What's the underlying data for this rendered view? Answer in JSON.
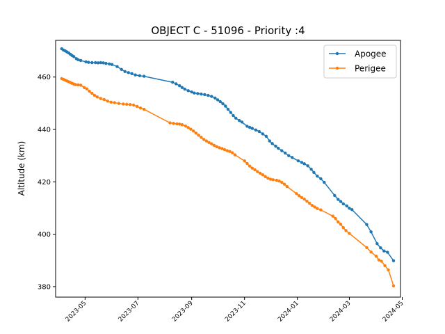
{
  "chart_data": {
    "type": "line",
    "title": "OBJECT C - 51096 - Priority :4",
    "xlabel": "",
    "ylabel": "Altitude (km)",
    "x_axis_type": "date",
    "xlim": [
      "2023-03-28",
      "2024-04-29"
    ],
    "ylim": [
      376,
      474
    ],
    "xticks": [
      "2023-05",
      "2023-07",
      "2023-09",
      "2023-11",
      "2024-01",
      "2024-03",
      "2024-05"
    ],
    "yticks": [
      380,
      400,
      420,
      440,
      460
    ],
    "grid": false,
    "legend_position": "top-right",
    "series": [
      {
        "name": "Apogee",
        "color": "#1f77b4",
        "marker": "circle",
        "points": [
          [
            "2023-04-04",
            470.8
          ],
          [
            "2023-04-06",
            470.3
          ],
          [
            "2023-04-08",
            470.0
          ],
          [
            "2023-04-10",
            469.6
          ],
          [
            "2023-04-12",
            469.2
          ],
          [
            "2023-04-14",
            468.7
          ],
          [
            "2023-04-16",
            468.2
          ],
          [
            "2023-04-18",
            467.8
          ],
          [
            "2023-04-21",
            467.0
          ],
          [
            "2023-04-23",
            466.6
          ],
          [
            "2023-04-26",
            466.3
          ],
          [
            "2023-05-02",
            465.8
          ],
          [
            "2023-05-05",
            465.6
          ],
          [
            "2023-05-09",
            465.5
          ],
          [
            "2023-05-13",
            465.5
          ],
          [
            "2023-05-16",
            465.4
          ],
          [
            "2023-05-19",
            465.5
          ],
          [
            "2023-05-22",
            465.4
          ],
          [
            "2023-05-25",
            465.2
          ],
          [
            "2023-05-29",
            465.0
          ],
          [
            "2023-06-01",
            464.8
          ],
          [
            "2023-06-07",
            464.0
          ],
          [
            "2023-06-12",
            462.9
          ],
          [
            "2023-06-16",
            462.1
          ],
          [
            "2023-06-20",
            461.7
          ],
          [
            "2023-06-24",
            461.3
          ],
          [
            "2023-06-28",
            460.8
          ],
          [
            "2023-07-03",
            460.5
          ],
          [
            "2023-07-08",
            460.3
          ],
          [
            "2023-08-10",
            458.0
          ],
          [
            "2023-08-14",
            457.4
          ],
          [
            "2023-08-18",
            456.7
          ],
          [
            "2023-08-21",
            456.0
          ],
          [
            "2023-08-24",
            455.4
          ],
          [
            "2023-08-28",
            454.8
          ],
          [
            "2023-09-01",
            454.3
          ],
          [
            "2023-09-04",
            453.9
          ],
          [
            "2023-09-08",
            453.7
          ],
          [
            "2023-09-12",
            453.5
          ],
          [
            "2023-09-16",
            453.3
          ],
          [
            "2023-09-20",
            453.0
          ],
          [
            "2023-09-24",
            452.6
          ],
          [
            "2023-09-28",
            452.0
          ],
          [
            "2023-10-01",
            451.3
          ],
          [
            "2023-10-04",
            450.6
          ],
          [
            "2023-10-07",
            449.8
          ],
          [
            "2023-10-10",
            448.9
          ],
          [
            "2023-10-13",
            447.7
          ],
          [
            "2023-10-16",
            446.5
          ],
          [
            "2023-10-19",
            445.3
          ],
          [
            "2023-10-22",
            444.3
          ],
          [
            "2023-10-26",
            443.4
          ],
          [
            "2023-10-29",
            442.8
          ],
          [
            "2023-11-04",
            441.2
          ],
          [
            "2023-11-07",
            440.8
          ],
          [
            "2023-11-10",
            440.4
          ],
          [
            "2023-11-14",
            439.8
          ],
          [
            "2023-11-18",
            439.2
          ],
          [
            "2023-11-22",
            438.3
          ],
          [
            "2023-11-26",
            437.4
          ],
          [
            "2023-11-30",
            435.6
          ],
          [
            "2023-12-03",
            434.6
          ],
          [
            "2023-12-07",
            433.6
          ],
          [
            "2023-12-10",
            432.8
          ],
          [
            "2023-12-14",
            431.9
          ],
          [
            "2023-12-18",
            431.0
          ],
          [
            "2023-12-22",
            430.0
          ],
          [
            "2023-12-26",
            429.3
          ],
          [
            "2024-01-02",
            428.0
          ],
          [
            "2024-01-06",
            427.4
          ],
          [
            "2024-01-09",
            426.9
          ],
          [
            "2024-01-13",
            426.1
          ],
          [
            "2024-01-17",
            424.8
          ],
          [
            "2024-01-20",
            423.6
          ],
          [
            "2024-01-24",
            422.2
          ],
          [
            "2024-01-28",
            421.2
          ],
          [
            "2024-02-01",
            419.8
          ],
          [
            "2024-02-13",
            414.8
          ],
          [
            "2024-02-17",
            413.3
          ],
          [
            "2024-02-20",
            412.5
          ],
          [
            "2024-02-23",
            411.6
          ],
          [
            "2024-02-27",
            410.8
          ],
          [
            "2024-03-01",
            409.9
          ],
          [
            "2024-03-04",
            409.4
          ],
          [
            "2024-03-21",
            403.7
          ],
          [
            "2024-03-26",
            400.9
          ],
          [
            "2024-04-02",
            396.4
          ],
          [
            "2024-04-06",
            394.8
          ],
          [
            "2024-04-10",
            393.6
          ],
          [
            "2024-04-14",
            393.1
          ],
          [
            "2024-04-21",
            389.9
          ]
        ]
      },
      {
        "name": "Perigee",
        "color": "#ff7f0e",
        "marker": "circle",
        "points": [
          [
            "2023-04-04",
            459.4
          ],
          [
            "2023-04-06",
            459.1
          ],
          [
            "2023-04-08",
            458.8
          ],
          [
            "2023-04-10",
            458.5
          ],
          [
            "2023-04-12",
            458.2
          ],
          [
            "2023-04-14",
            457.9
          ],
          [
            "2023-04-16",
            457.6
          ],
          [
            "2023-04-18",
            457.3
          ],
          [
            "2023-04-20",
            457.1
          ],
          [
            "2023-04-23",
            457.0
          ],
          [
            "2023-04-26",
            456.9
          ],
          [
            "2023-04-30",
            456.0
          ],
          [
            "2023-05-03",
            455.5
          ],
          [
            "2023-05-06",
            454.6
          ],
          [
            "2023-05-09",
            453.8
          ],
          [
            "2023-05-12",
            453.0
          ],
          [
            "2023-05-15",
            452.4
          ],
          [
            "2023-05-19",
            451.8
          ],
          [
            "2023-05-23",
            451.4
          ],
          [
            "2023-05-27",
            450.8
          ],
          [
            "2023-05-31",
            450.4
          ],
          [
            "2023-06-04",
            450.2
          ],
          [
            "2023-06-09",
            449.9
          ],
          [
            "2023-06-14",
            449.7
          ],
          [
            "2023-06-18",
            449.6
          ],
          [
            "2023-06-22",
            449.5
          ],
          [
            "2023-06-26",
            449.3
          ],
          [
            "2023-06-30",
            448.8
          ],
          [
            "2023-07-04",
            448.2
          ],
          [
            "2023-07-08",
            447.7
          ],
          [
            "2023-08-07",
            442.5
          ],
          [
            "2023-08-11",
            442.3
          ],
          [
            "2023-08-15",
            442.1
          ],
          [
            "2023-08-18",
            442.0
          ],
          [
            "2023-08-21",
            441.8
          ],
          [
            "2023-08-25",
            441.3
          ],
          [
            "2023-08-28",
            440.7
          ],
          [
            "2023-08-31",
            440.1
          ],
          [
            "2023-09-03",
            439.4
          ],
          [
            "2023-09-06",
            438.6
          ],
          [
            "2023-09-09",
            437.8
          ],
          [
            "2023-09-12",
            437.0
          ],
          [
            "2023-09-15",
            436.2
          ],
          [
            "2023-09-18",
            435.6
          ],
          [
            "2023-09-21",
            435.0
          ],
          [
            "2023-09-24",
            434.5
          ],
          [
            "2023-09-27",
            433.9
          ],
          [
            "2023-09-30",
            433.4
          ],
          [
            "2023-10-03",
            433.0
          ],
          [
            "2023-10-06",
            432.7
          ],
          [
            "2023-10-09",
            432.3
          ],
          [
            "2023-10-12",
            431.9
          ],
          [
            "2023-10-15",
            431.6
          ],
          [
            "2023-10-18",
            431.1
          ],
          [
            "2023-10-21",
            430.3
          ],
          [
            "2023-11-01",
            428.0
          ],
          [
            "2023-11-04",
            427.0
          ],
          [
            "2023-11-07",
            426.0
          ],
          [
            "2023-11-10",
            425.2
          ],
          [
            "2023-11-13",
            424.6
          ],
          [
            "2023-11-16",
            423.9
          ],
          [
            "2023-11-19",
            423.3
          ],
          [
            "2023-11-22",
            422.7
          ],
          [
            "2023-11-25",
            422.0
          ],
          [
            "2023-11-28",
            421.4
          ],
          [
            "2023-12-01",
            421.0
          ],
          [
            "2023-12-04",
            420.8
          ],
          [
            "2023-12-08",
            420.6
          ],
          [
            "2023-12-11",
            420.3
          ],
          [
            "2023-12-14",
            419.8
          ],
          [
            "2023-12-17",
            419.1
          ],
          [
            "2023-12-20",
            418.2
          ],
          [
            "2023-12-31",
            415.5
          ],
          [
            "2024-01-03",
            414.7
          ],
          [
            "2024-01-06",
            414.0
          ],
          [
            "2024-01-09",
            413.4
          ],
          [
            "2024-01-12",
            412.6
          ],
          [
            "2024-01-15",
            411.8
          ],
          [
            "2024-01-18",
            411.0
          ],
          [
            "2024-01-21",
            410.4
          ],
          [
            "2024-01-24",
            409.8
          ],
          [
            "2024-01-28",
            409.3
          ],
          [
            "2024-02-11",
            406.9
          ],
          [
            "2024-02-14",
            406.0
          ],
          [
            "2024-02-17",
            404.7
          ],
          [
            "2024-02-20",
            403.8
          ],
          [
            "2024-02-23",
            402.5
          ],
          [
            "2024-02-26",
            401.4
          ],
          [
            "2024-03-01",
            400.3
          ],
          [
            "2024-03-21",
            394.9
          ],
          [
            "2024-03-26",
            393.2
          ],
          [
            "2024-04-01",
            391.6
          ],
          [
            "2024-04-04",
            390.2
          ],
          [
            "2024-04-07",
            389.7
          ],
          [
            "2024-04-11",
            388.0
          ],
          [
            "2024-04-15",
            386.4
          ],
          [
            "2024-04-21",
            380.3
          ]
        ]
      }
    ]
  }
}
